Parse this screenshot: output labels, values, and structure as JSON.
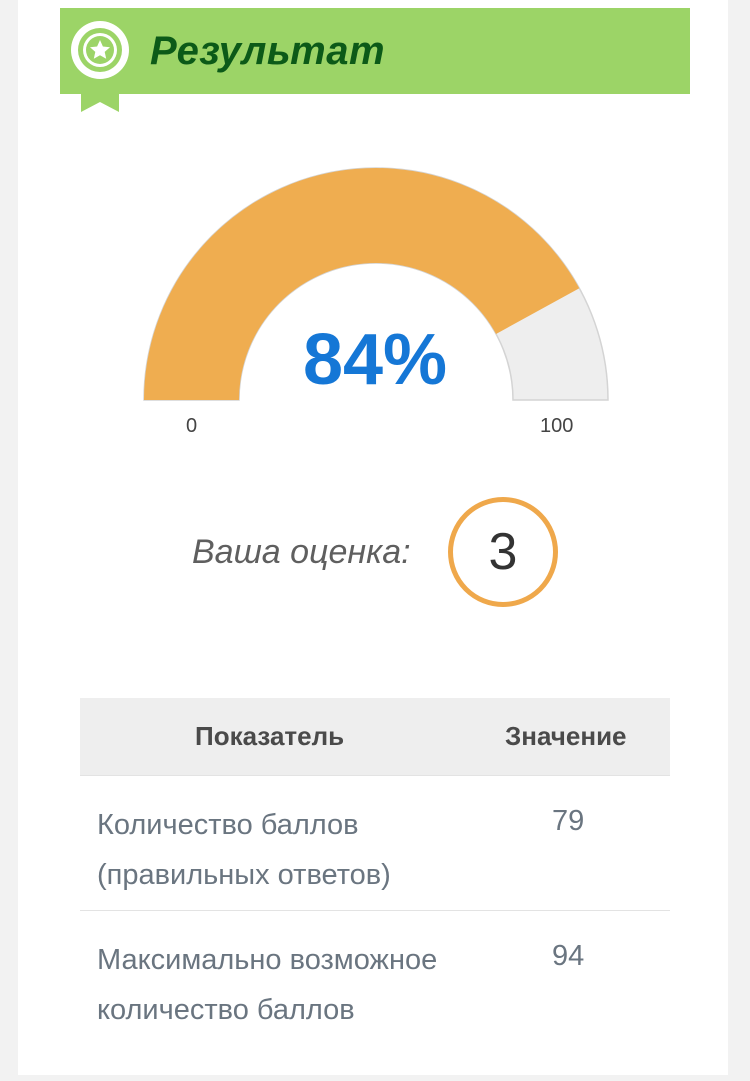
{
  "header": {
    "title": "Результат",
    "icon": "award-badge-icon",
    "colors": {
      "background": "#9cd467",
      "title": "#0c5a18"
    }
  },
  "gauge": {
    "value_percent": 84,
    "value_label": "84%",
    "min_label": "0",
    "max_label": "100",
    "colors": {
      "fill": "#efad50",
      "track": "#eeeeee",
      "value_text": "#1577d6"
    }
  },
  "grade": {
    "label": "Ваша оценка:",
    "value": "3",
    "ring_color": "#efa84b"
  },
  "table": {
    "columns": [
      "Показатель",
      "Значение"
    ],
    "rows": [
      {
        "name": "Количество баллов (правильных ответов)",
        "value": "79"
      },
      {
        "name": "Максимально возможное количество баллов",
        "value": "94"
      }
    ]
  }
}
